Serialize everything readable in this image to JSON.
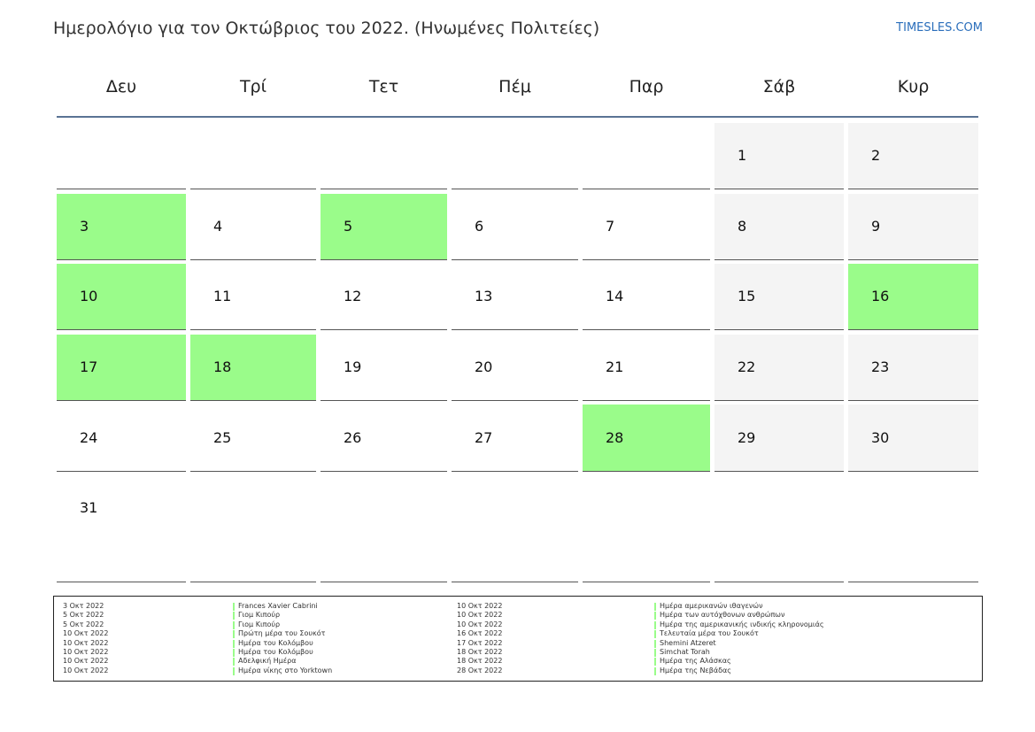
{
  "header": {
    "title": "Ημερολόγιο για τον Οκτώβριος του 2022. (Ηνωμένες Πολιτείες)",
    "site": "TIMESLES.COM"
  },
  "calendar": {
    "weekdays": [
      "Δευ",
      "Τρί",
      "Τετ",
      "Πέμ",
      "Παρ",
      "Σάβ",
      "Κυρ"
    ],
    "highlight_color": "#9afc8a",
    "weekend_color": "#f4f4f4",
    "weeks": [
      [
        null,
        null,
        null,
        null,
        null,
        {
          "day": 1
        },
        {
          "day": 2
        }
      ],
      [
        {
          "day": 3,
          "highlight": true
        },
        {
          "day": 4
        },
        {
          "day": 5,
          "highlight": true
        },
        {
          "day": 6
        },
        {
          "day": 7
        },
        {
          "day": 8
        },
        {
          "day": 9
        }
      ],
      [
        {
          "day": 10,
          "highlight": true
        },
        {
          "day": 11
        },
        {
          "day": 12
        },
        {
          "day": 13
        },
        {
          "day": 14
        },
        {
          "day": 15
        },
        {
          "day": 16,
          "highlight": true
        }
      ],
      [
        {
          "day": 17,
          "highlight": true
        },
        {
          "day": 18,
          "highlight": true
        },
        {
          "day": 19
        },
        {
          "day": 20
        },
        {
          "day": 21
        },
        {
          "day": 22
        },
        {
          "day": 23
        }
      ],
      [
        {
          "day": 24
        },
        {
          "day": 25
        },
        {
          "day": 26
        },
        {
          "day": 27
        },
        {
          "day": 28,
          "highlight": true
        },
        {
          "day": 29
        },
        {
          "day": 30
        }
      ],
      [
        {
          "day": 31
        },
        null,
        null,
        null,
        null,
        null,
        null
      ]
    ]
  },
  "holidays": [
    {
      "date": "3 Οκτ 2022",
      "name": "Frances Xavier Cabrini"
    },
    {
      "date": "5 Οκτ 2022",
      "name": "Γιομ Κιπούρ"
    },
    {
      "date": "5 Οκτ 2022",
      "name": "Γιομ Κιπούρ"
    },
    {
      "date": "10 Οκτ 2022",
      "name": "Πρώτη μέρα του Σουκότ"
    },
    {
      "date": "10 Οκτ 2022",
      "name": "Ημέρα του Κολόμβου"
    },
    {
      "date": "10 Οκτ 2022",
      "name": "Ημέρα του Κολόμβου"
    },
    {
      "date": "10 Οκτ 2022",
      "name": "Αδελφική Ημέρα"
    },
    {
      "date": "10 Οκτ 2022",
      "name": "Ημέρα νίκης στο Yorktown"
    },
    {
      "date": "10 Οκτ 2022",
      "name": "Ημέρα αμερικανών ιθαγενών"
    },
    {
      "date": "10 Οκτ 2022",
      "name": "Ημέρα των αυτόχθονων ανθρώπων"
    },
    {
      "date": "10 Οκτ 2022",
      "name": "Ημέρα της αμερικανικής ινδικής κληρονομιάς"
    },
    {
      "date": "16 Οκτ 2022",
      "name": "Τελευταία μέρα του Σουκότ"
    },
    {
      "date": "17 Οκτ 2022",
      "name": "Shemini Atzeret"
    },
    {
      "date": "18 Οκτ 2022",
      "name": "Simchat Torah"
    },
    {
      "date": "18 Οκτ 2022",
      "name": "Ημέρα της Αλάσκας"
    },
    {
      "date": "28 Οκτ 2022",
      "name": "Ημέρα της Νεβάδας"
    }
  ]
}
